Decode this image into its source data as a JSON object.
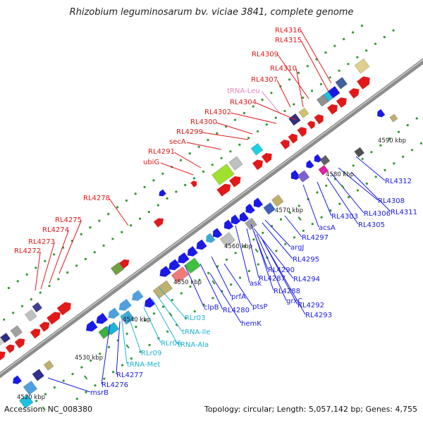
{
  "title": "Rhizobium leguminosarum bv. viciae 3841, complete genome",
  "accession": "Accession: NC_008380",
  "summary": "Topology: circular; Length: 5,057,142 bp; Genes: 4,755",
  "colors": {
    "backbone": "#8c8c8c",
    "forward_gene": "#e11919",
    "reverse_gene": "#1a1ae6",
    "trna_label": "#1fb3d6",
    "trna_leu_label": "#e887c0",
    "tick_label": "#222222",
    "tick_dot": "#2f9a2f"
  },
  "ticks": [
    {
      "label": "4520 kbp"
    },
    {
      "label": "4530 kbp"
    },
    {
      "label": "4540 kbp"
    },
    {
      "label": "4550 kbp"
    },
    {
      "label": "4560 kbp"
    },
    {
      "label": "4570 kbp"
    },
    {
      "label": "4580 kbp"
    },
    {
      "label": "4590 kbp"
    }
  ],
  "labels_upper": [
    {
      "text": "RL4316",
      "color": "#e11919"
    },
    {
      "text": "RL4315",
      "color": "#e11919"
    },
    {
      "text": "RL4309",
      "color": "#e11919"
    },
    {
      "text": "RL4310",
      "color": "#e11919"
    },
    {
      "text": "RL4307",
      "color": "#e11919"
    },
    {
      "text": "tRNA-Leu",
      "color": "#e887c0"
    },
    {
      "text": "RL4304",
      "color": "#e11919"
    },
    {
      "text": "RL4302",
      "color": "#e11919"
    },
    {
      "text": "RL4300",
      "color": "#e11919"
    },
    {
      "text": "RL4299",
      "color": "#e11919"
    },
    {
      "text": "secA",
      "color": "#e11919"
    },
    {
      "text": "RL4291",
      "color": "#e11919"
    },
    {
      "text": "ubiG",
      "color": "#e11919"
    },
    {
      "text": "RL4278",
      "color": "#e11919"
    },
    {
      "text": "RL4275",
      "color": "#e11919"
    },
    {
      "text": "RL4274",
      "color": "#e11919"
    },
    {
      "text": "RL4273",
      "color": "#e11919"
    },
    {
      "text": "RL4272",
      "color": "#e11919"
    }
  ],
  "labels_lower": [
    {
      "text": "RL4312",
      "color": "#1a1ae6"
    },
    {
      "text": "RL4308",
      "color": "#1a1ae6"
    },
    {
      "text": "RL4311",
      "color": "#1a1ae6"
    },
    {
      "text": "RL4306",
      "color": "#1a1ae6"
    },
    {
      "text": "RL4303",
      "color": "#1a1ae6"
    },
    {
      "text": "RL4305",
      "color": "#1a1ae6"
    },
    {
      "text": "acsA",
      "color": "#1a1ae6"
    },
    {
      "text": "RL4297",
      "color": "#1a1ae6"
    },
    {
      "text": "argJ",
      "color": "#1a1ae6"
    },
    {
      "text": "RL4295",
      "color": "#1a1ae6"
    },
    {
      "text": "RL4290",
      "color": "#1a1ae6"
    },
    {
      "text": "RL4294",
      "color": "#1a1ae6"
    },
    {
      "text": "RL4287",
      "color": "#1a1ae6"
    },
    {
      "text": "RL4288",
      "color": "#1a1ae6"
    },
    {
      "text": "ask",
      "color": "#1a1ae6"
    },
    {
      "text": "grxC",
      "color": "#1a1ae6"
    },
    {
      "text": "RL4292",
      "color": "#1a1ae6"
    },
    {
      "text": "RL4293",
      "color": "#1a1ae6"
    },
    {
      "text": "prfA",
      "color": "#1a1ae6"
    },
    {
      "text": "ptsP",
      "color": "#1a1ae6"
    },
    {
      "text": "clpB",
      "color": "#1a1ae6"
    },
    {
      "text": "RL4280",
      "color": "#1a1ae6"
    },
    {
      "text": "hemK",
      "color": "#1a1ae6"
    },
    {
      "text": "RLr03",
      "color": "#1fb3d6"
    },
    {
      "text": "tRNA-Ile",
      "color": "#1fb3d6"
    },
    {
      "text": "tRNA-Ala",
      "color": "#1fb3d6"
    },
    {
      "text": "RLr06",
      "color": "#1fb3d6"
    },
    {
      "text": "RLr09",
      "color": "#1fb3d6"
    },
    {
      "text": "tRNA-Met",
      "color": "#1fb3d6"
    },
    {
      "text": "RL4277",
      "color": "#1a1ae6"
    },
    {
      "text": "RL4276",
      "color": "#1a1ae6"
    },
    {
      "text": "msrB",
      "color": "#1a1ae6"
    }
  ]
}
